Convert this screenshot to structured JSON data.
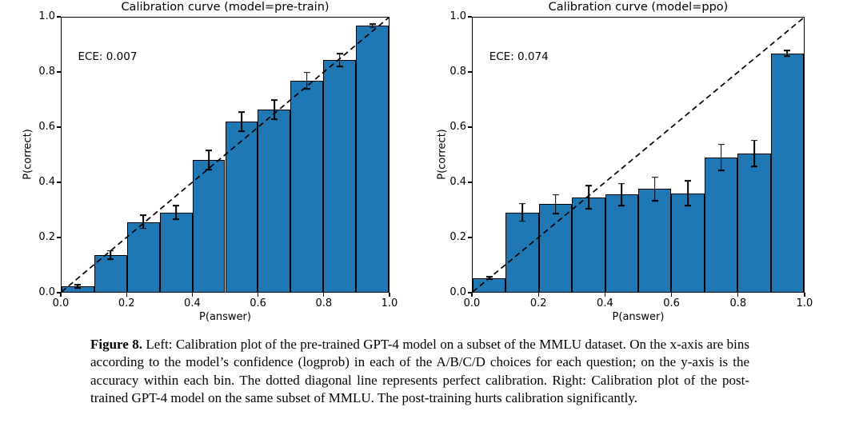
{
  "page": {
    "background": "#ffffff"
  },
  "colors": {
    "bar_fill": "#1f77b4",
    "bar_edge": "#000000",
    "diagonal_line": "#000000",
    "error_bar": "#000000",
    "text": "#000000"
  },
  "chart_data": [
    {
      "type": "bar",
      "title": "Calibration curve (model=pre-train)",
      "annotation": "ECE: 0.007",
      "xlabel": "P(answer)",
      "ylabel": "P(correct)",
      "xlim": [
        0.0,
        1.0
      ],
      "ylim": [
        0.0,
        1.0
      ],
      "grid": false,
      "legend": "none",
      "reference_line": "dashed diagonal y=x (perfect calibration)",
      "bin_width": 0.1,
      "bin_centers": [
        0.05,
        0.15,
        0.25,
        0.35,
        0.45,
        0.55,
        0.65,
        0.75,
        0.85,
        0.95
      ],
      "values": [
        0.02,
        0.135,
        0.255,
        0.29,
        0.48,
        0.62,
        0.665,
        0.77,
        0.845,
        0.97
      ],
      "error_bars": [
        0.005,
        0.015,
        0.024,
        0.025,
        0.035,
        0.035,
        0.035,
        0.03,
        0.024,
        0.007
      ],
      "xticks": [
        "0.0",
        "0.2",
        "0.4",
        "0.6",
        "0.8",
        "1.0"
      ],
      "yticks": [
        "0.0",
        "0.2",
        "0.4",
        "0.6",
        "0.8",
        "1.0"
      ]
    },
    {
      "type": "bar",
      "title": "Calibration curve (model=ppo)",
      "annotation": "ECE: 0.074",
      "xlabel": "P(answer)",
      "ylabel": "P(correct)",
      "xlim": [
        0.0,
        1.0
      ],
      "ylim": [
        0.0,
        1.0
      ],
      "grid": false,
      "legend": "none",
      "reference_line": "dashed diagonal y=x (perfect calibration)",
      "bin_width": 0.1,
      "bin_centers": [
        0.05,
        0.15,
        0.25,
        0.35,
        0.45,
        0.55,
        0.65,
        0.75,
        0.85,
        0.95
      ],
      "values": [
        0.05,
        0.29,
        0.32,
        0.345,
        0.355,
        0.375,
        0.36,
        0.49,
        0.505,
        0.87
      ],
      "error_bars": [
        0.004,
        0.032,
        0.034,
        0.042,
        0.04,
        0.043,
        0.045,
        0.047,
        0.047,
        0.01
      ],
      "xticks": [
        "0.0",
        "0.2",
        "0.4",
        "0.6",
        "0.8",
        "1.0"
      ],
      "yticks": [
        "0.0",
        "0.2",
        "0.4",
        "0.6",
        "0.8",
        "1.0"
      ]
    }
  ],
  "figure_caption": {
    "label": "Figure 8.",
    "text": "Left: Calibration plot of the pre-trained GPT-4 model on a subset of the MMLU dataset. On the x-axis are bins according to the model’s confidence (logprob) in each of the A/B/C/D choices for each question; on the y-axis is the accuracy within each bin. The dotted diagonal line represents perfect calibration. Right: Calibration plot of the post-trained GPT-4 model on the same subset of MMLU. The post-training hurts calibration significantly."
  }
}
